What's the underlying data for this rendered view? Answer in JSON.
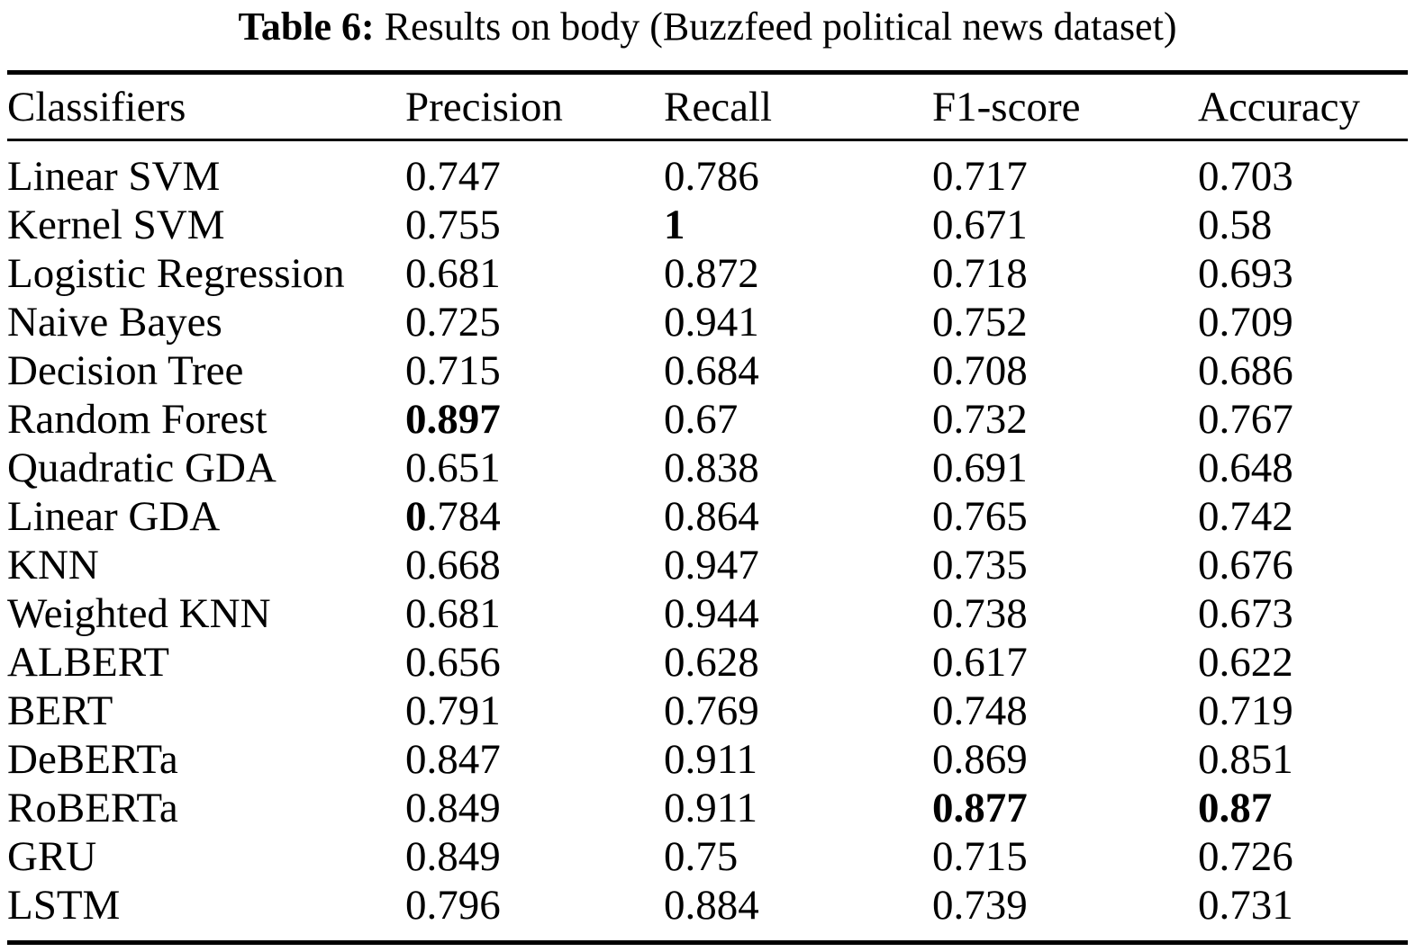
{
  "caption": {
    "label": "Table 6:",
    "text": " Results on body (Buzzfeed political news dataset)"
  },
  "table": {
    "headers": [
      "Classifiers",
      "Precision",
      "Recall",
      "F1-score",
      "Accuracy"
    ],
    "rows": [
      {
        "cells": [
          {
            "bold": "",
            "text": "Linear SVM"
          },
          {
            "bold": "",
            "text": "0.747"
          },
          {
            "bold": "",
            "text": "0.786"
          },
          {
            "bold": "",
            "text": "0.717"
          },
          {
            "bold": "",
            "text": "0.703"
          }
        ]
      },
      {
        "cells": [
          {
            "bold": "",
            "text": "Kernel SVM"
          },
          {
            "bold": "",
            "text": "0.755"
          },
          {
            "bold": "1",
            "text": ""
          },
          {
            "bold": "",
            "text": "0.671"
          },
          {
            "bold": "",
            "text": "0.58"
          }
        ]
      },
      {
        "cells": [
          {
            "bold": "",
            "text": "Logistic Regression"
          },
          {
            "bold": "",
            "text": "0.681"
          },
          {
            "bold": "",
            "text": "0.872"
          },
          {
            "bold": "",
            "text": "0.718"
          },
          {
            "bold": "",
            "text": "0.693"
          }
        ]
      },
      {
        "cells": [
          {
            "bold": "",
            "text": "Naive Bayes"
          },
          {
            "bold": "",
            "text": "0.725"
          },
          {
            "bold": "",
            "text": "0.941"
          },
          {
            "bold": "",
            "text": "0.752"
          },
          {
            "bold": "",
            "text": "0.709"
          }
        ]
      },
      {
        "cells": [
          {
            "bold": "",
            "text": "Decision Tree"
          },
          {
            "bold": "",
            "text": "0.715"
          },
          {
            "bold": "",
            "text": "0.684"
          },
          {
            "bold": "",
            "text": "0.708"
          },
          {
            "bold": "",
            "text": "0.686"
          }
        ]
      },
      {
        "cells": [
          {
            "bold": "",
            "text": "Random Forest"
          },
          {
            "bold": "0.897",
            "text": ""
          },
          {
            "bold": "",
            "text": "0.67"
          },
          {
            "bold": "",
            "text": "0.732"
          },
          {
            "bold": "",
            "text": "0.767"
          }
        ]
      },
      {
        "cells": [
          {
            "bold": "",
            "text": "Quadratic GDA"
          },
          {
            "bold": "",
            "text": "0.651"
          },
          {
            "bold": "",
            "text": "0.838"
          },
          {
            "bold": "",
            "text": "0.691"
          },
          {
            "bold": "",
            "text": "0.648"
          }
        ]
      },
      {
        "cells": [
          {
            "bold": "",
            "text": "Linear GDA"
          },
          {
            "bold": "0",
            "text": ".784"
          },
          {
            "bold": "",
            "text": "0.864"
          },
          {
            "bold": "",
            "text": "0.765"
          },
          {
            "bold": "",
            "text": "0.742"
          }
        ]
      },
      {
        "cells": [
          {
            "bold": "",
            "text": "KNN"
          },
          {
            "bold": "",
            "text": "0.668"
          },
          {
            "bold": "",
            "text": "0.947"
          },
          {
            "bold": "",
            "text": "0.735"
          },
          {
            "bold": "",
            "text": "0.676"
          }
        ]
      },
      {
        "cells": [
          {
            "bold": "",
            "text": "Weighted KNN"
          },
          {
            "bold": "",
            "text": "0.681"
          },
          {
            "bold": "",
            "text": "0.944"
          },
          {
            "bold": "",
            "text": "0.738"
          },
          {
            "bold": "",
            "text": "0.673"
          }
        ]
      },
      {
        "cells": [
          {
            "bold": "",
            "text": "ALBERT"
          },
          {
            "bold": "",
            "text": "0.656"
          },
          {
            "bold": "",
            "text": "0.628"
          },
          {
            "bold": "",
            "text": "0.617"
          },
          {
            "bold": "",
            "text": "0.622"
          }
        ]
      },
      {
        "cells": [
          {
            "bold": "",
            "text": "BERT"
          },
          {
            "bold": "",
            "text": "0.791"
          },
          {
            "bold": "",
            "text": "0.769"
          },
          {
            "bold": "",
            "text": "0.748"
          },
          {
            "bold": "",
            "text": "0.719"
          }
        ]
      },
      {
        "cells": [
          {
            "bold": "",
            "text": "DeBERTa"
          },
          {
            "bold": "",
            "text": "0.847"
          },
          {
            "bold": "",
            "text": "0.911"
          },
          {
            "bold": "",
            "text": "0.869"
          },
          {
            "bold": "",
            "text": "0.851"
          }
        ]
      },
      {
        "cells": [
          {
            "bold": "",
            "text": "RoBERTa"
          },
          {
            "bold": "",
            "text": "0.849"
          },
          {
            "bold": "",
            "text": "0.911"
          },
          {
            "bold": "0.877",
            "text": ""
          },
          {
            "bold": "0.87",
            "text": ""
          }
        ]
      },
      {
        "cells": [
          {
            "bold": "",
            "text": "GRU"
          },
          {
            "bold": "",
            "text": "0.849"
          },
          {
            "bold": "",
            "text": "0.75"
          },
          {
            "bold": "",
            "text": "0.715"
          },
          {
            "bold": "",
            "text": "0.726"
          }
        ]
      },
      {
        "cells": [
          {
            "bold": "",
            "text": "LSTM"
          },
          {
            "bold": "",
            "text": "0.796"
          },
          {
            "bold": "",
            "text": "0.884"
          },
          {
            "bold": "",
            "text": "0.739"
          },
          {
            "bold": "",
            "text": "0.731"
          }
        ]
      }
    ]
  },
  "colors": {
    "text": "#000000",
    "background": "#ffffff",
    "rule": "#000000"
  }
}
